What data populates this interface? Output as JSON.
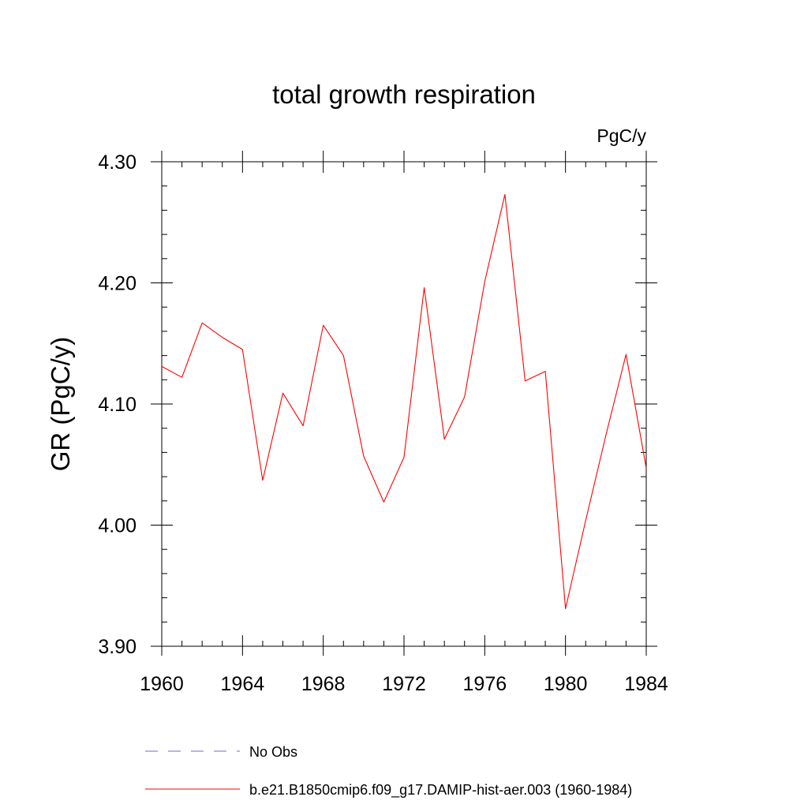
{
  "chart_data": {
    "type": "line",
    "title": "total growth respiration",
    "units_label": "PgC/y",
    "xlabel": "",
    "ylabel": "GR  (PgC/y)",
    "xlim": [
      1960,
      1984
    ],
    "ylim": [
      3.9,
      4.3
    ],
    "x_ticks": [
      1960,
      1964,
      1968,
      1972,
      1976,
      1980,
      1984
    ],
    "x_tick_labels": [
      "1960",
      "1964",
      "1968",
      "1972",
      "1976",
      "1980",
      "1984"
    ],
    "y_ticks": [
      3.9,
      4.0,
      4.1,
      4.2,
      4.3
    ],
    "y_tick_labels": [
      "3.90",
      "4.00",
      "4.10",
      "4.20",
      "4.30"
    ],
    "x_minor_step": 1,
    "y_minor_step": 0.02,
    "grid": false,
    "legend_position": "bottom",
    "series": [
      {
        "name": "b.e21.B1850cmip6.f09_g17.DAMIP-hist-aer.003 (1960-1984)",
        "color": "#ff0000",
        "style": "solid",
        "x": [
          1960,
          1961,
          1962,
          1963,
          1964,
          1965,
          1966,
          1967,
          1968,
          1969,
          1970,
          1971,
          1972,
          1973,
          1974,
          1975,
          1976,
          1977,
          1978,
          1979,
          1980,
          1981,
          1982,
          1983,
          1984
        ],
        "values": [
          4.131,
          4.122,
          4.167,
          4.155,
          4.145,
          4.037,
          4.109,
          4.082,
          4.165,
          4.14,
          4.057,
          4.019,
          4.056,
          4.196,
          4.071,
          4.106,
          4.201,
          4.273,
          4.119,
          4.127,
          3.931,
          4.004,
          4.074,
          4.141,
          4.047
        ]
      }
    ],
    "legend": [
      {
        "label": "No Obs",
        "color": "#6b6bd6",
        "style": "dashed"
      },
      {
        "label": "b.e21.B1850cmip6.f09_g17.DAMIP-hist-aer.003 (1960-1984)",
        "color": "#ff0000",
        "style": "solid"
      }
    ]
  }
}
